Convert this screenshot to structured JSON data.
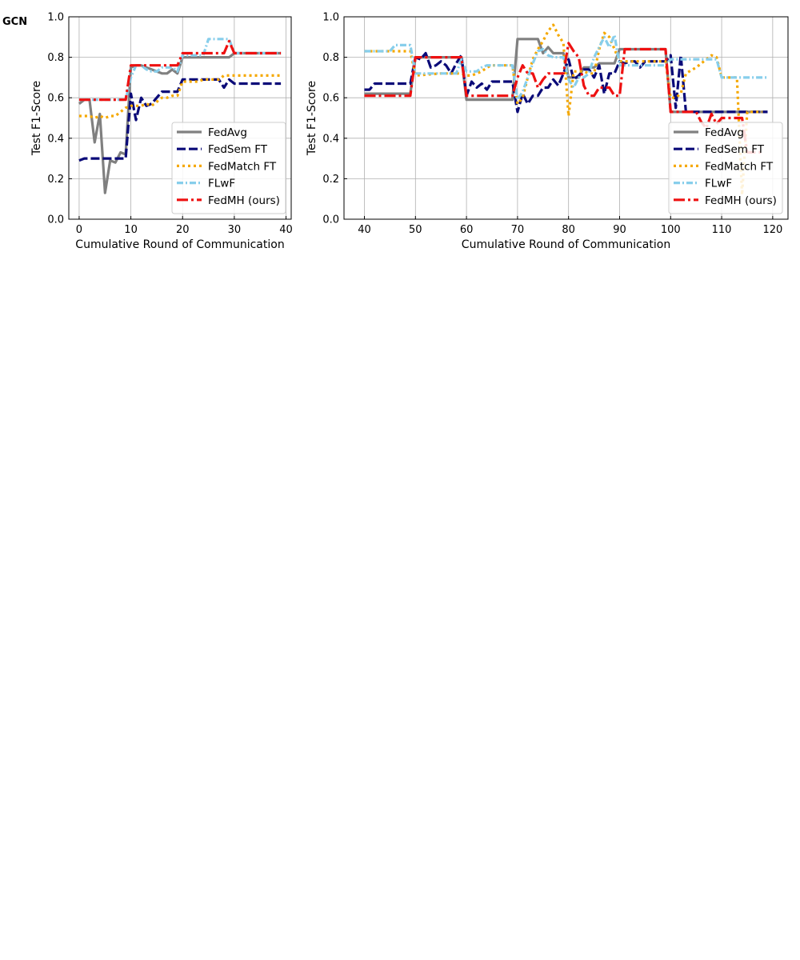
{
  "panel_label": "GCN",
  "chart_data": [
    {
      "type": "line",
      "xlabel": "Cumulative Round of Communication",
      "ylabel": "Test F1-Score",
      "xlim": [
        -2,
        41
      ],
      "ylim": [
        0,
        1
      ],
      "xticks": [
        0,
        10,
        20,
        30,
        40
      ],
      "yticks": [
        0.0,
        0.2,
        0.4,
        0.6,
        0.8,
        1.0
      ],
      "grid": true,
      "legend_position": "lower-right",
      "series": [
        {
          "name": "FedAvg",
          "color": "#808080",
          "dash": "solid",
          "x": [
            0,
            1,
            2,
            3,
            4,
            5,
            6,
            7,
            8,
            9,
            10,
            11,
            12,
            13,
            14,
            15,
            16,
            17,
            18,
            19,
            20,
            21,
            22,
            23,
            24,
            25,
            26,
            27,
            28,
            29,
            30,
            31,
            32,
            33,
            34,
            35,
            36,
            37,
            38,
            39
          ],
          "y": [
            0.57,
            0.59,
            0.59,
            0.38,
            0.52,
            0.13,
            0.29,
            0.28,
            0.33,
            0.32,
            0.75,
            0.76,
            0.76,
            0.75,
            0.74,
            0.73,
            0.72,
            0.72,
            0.74,
            0.72,
            0.8,
            0.8,
            0.8,
            0.8,
            0.8,
            0.8,
            0.8,
            0.8,
            0.8,
            0.8,
            0.82,
            0.82,
            0.82,
            0.82,
            0.82,
            0.82,
            0.82,
            0.82,
            0.82,
            0.82
          ]
        },
        {
          "name": "FedSem FT",
          "color": "#0a0a78",
          "dash": "dashed",
          "x": [
            0,
            1,
            2,
            3,
            4,
            5,
            6,
            7,
            8,
            9,
            10,
            11,
            12,
            13,
            14,
            15,
            16,
            17,
            18,
            19,
            20,
            21,
            22,
            23,
            24,
            25,
            26,
            27,
            28,
            29,
            30,
            31,
            32,
            33,
            34,
            35,
            36,
            37,
            38,
            39
          ],
          "y": [
            0.29,
            0.3,
            0.3,
            0.3,
            0.3,
            0.3,
            0.3,
            0.3,
            0.3,
            0.3,
            0.62,
            0.49,
            0.6,
            0.56,
            0.57,
            0.6,
            0.63,
            0.63,
            0.63,
            0.63,
            0.69,
            0.69,
            0.69,
            0.69,
            0.69,
            0.69,
            0.69,
            0.69,
            0.65,
            0.69,
            0.67,
            0.67,
            0.67,
            0.67,
            0.67,
            0.67,
            0.67,
            0.67,
            0.67,
            0.67
          ]
        },
        {
          "name": "FedMatch FT",
          "color": "#f5a800",
          "dash": "dotted",
          "x": [
            0,
            1,
            2,
            3,
            4,
            5,
            6,
            7,
            8,
            9,
            10,
            11,
            12,
            13,
            14,
            15,
            16,
            17,
            18,
            19,
            20,
            21,
            22,
            23,
            24,
            25,
            26,
            27,
            28,
            29,
            30,
            31,
            32,
            33,
            34,
            35,
            36,
            37,
            38,
            39
          ],
          "y": [
            0.51,
            0.51,
            0.51,
            0.5,
            0.51,
            0.5,
            0.51,
            0.51,
            0.53,
            0.55,
            0.56,
            0.56,
            0.56,
            0.57,
            0.56,
            0.58,
            0.6,
            0.6,
            0.61,
            0.61,
            0.68,
            0.68,
            0.68,
            0.68,
            0.69,
            0.69,
            0.69,
            0.69,
            0.71,
            0.71,
            0.71,
            0.71,
            0.71,
            0.71,
            0.71,
            0.71,
            0.71,
            0.71,
            0.71,
            0.71
          ]
        },
        {
          "name": "FLwF",
          "color": "#87ceeb",
          "dash": "dashdot",
          "x": [
            0,
            1,
            2,
            3,
            4,
            5,
            6,
            7,
            8,
            9,
            10,
            11,
            12,
            13,
            14,
            15,
            16,
            17,
            18,
            19,
            20,
            21,
            22,
            23,
            24,
            25,
            26,
            27,
            28,
            29,
            30,
            31,
            32,
            33,
            34,
            35,
            36,
            37,
            38,
            39
          ],
          "y": [
            0.59,
            0.59,
            0.59,
            0.59,
            0.59,
            0.59,
            0.59,
            0.59,
            0.59,
            0.59,
            0.7,
            0.76,
            0.76,
            0.74,
            0.73,
            0.73,
            0.75,
            0.75,
            0.75,
            0.73,
            0.81,
            0.81,
            0.81,
            0.81,
            0.81,
            0.89,
            0.89,
            0.89,
            0.89,
            0.89,
            0.82,
            0.82,
            0.82,
            0.82,
            0.82,
            0.82,
            0.82,
            0.82,
            0.82,
            0.82
          ]
        },
        {
          "name": "FedMH (ours)",
          "color": "#ee1111",
          "dash": "dashdot-long",
          "x": [
            0,
            1,
            2,
            3,
            4,
            5,
            6,
            7,
            8,
            9,
            10,
            11,
            12,
            13,
            14,
            15,
            16,
            17,
            18,
            19,
            20,
            21,
            22,
            23,
            24,
            25,
            26,
            27,
            28,
            29,
            30,
            31,
            32,
            33,
            34,
            35,
            36,
            37,
            38,
            39
          ],
          "y": [
            0.59,
            0.59,
            0.59,
            0.59,
            0.59,
            0.59,
            0.59,
            0.59,
            0.59,
            0.59,
            0.76,
            0.76,
            0.76,
            0.76,
            0.76,
            0.76,
            0.76,
            0.76,
            0.76,
            0.76,
            0.82,
            0.82,
            0.82,
            0.82,
            0.82,
            0.82,
            0.82,
            0.82,
            0.82,
            0.88,
            0.82,
            0.82,
            0.82,
            0.82,
            0.82,
            0.82,
            0.82,
            0.82,
            0.82,
            0.82
          ]
        }
      ]
    },
    {
      "type": "line",
      "xlabel": "Cumulative Round of Communication",
      "ylabel": "Test F1-Score",
      "xlim": [
        36,
        123
      ],
      "ylim": [
        0,
        1
      ],
      "xticks": [
        40,
        50,
        60,
        70,
        80,
        90,
        100,
        110,
        120
      ],
      "yticks": [
        0.0,
        0.2,
        0.4,
        0.6,
        0.8,
        1.0
      ],
      "grid": true,
      "legend_position": "lower-right",
      "series": [
        {
          "name": "FedAvg",
          "color": "#808080",
          "dash": "solid",
          "x": [
            40,
            49,
            50,
            55,
            58,
            59,
            60,
            65,
            69,
            70,
            71,
            72,
            73,
            74,
            75,
            76,
            77,
            78,
            79,
            80,
            81,
            82,
            83,
            84,
            85,
            86,
            87,
            88,
            89,
            90,
            95,
            99,
            100,
            105,
            110,
            115,
            119
          ],
          "y": [
            0.62,
            0.62,
            0.8,
            0.8,
            0.8,
            0.8,
            0.59,
            0.59,
            0.59,
            0.89,
            0.89,
            0.89,
            0.89,
            0.89,
            0.82,
            0.85,
            0.82,
            0.82,
            0.82,
            0.7,
            0.7,
            0.7,
            0.75,
            0.75,
            0.75,
            0.77,
            0.77,
            0.77,
            0.77,
            0.84,
            0.84,
            0.84,
            0.53,
            0.53,
            0.53,
            0.53,
            0.53
          ]
        },
        {
          "name": "FedSem FT",
          "color": "#0a0a78",
          "dash": "dashed",
          "x": [
            40,
            41,
            42,
            45,
            49,
            50,
            51,
            52,
            53,
            54,
            55,
            56,
            57,
            58,
            59,
            60,
            61,
            62,
            63,
            64,
            65,
            66,
            67,
            68,
            69,
            70,
            71,
            72,
            73,
            74,
            75,
            76,
            77,
            78,
            79,
            80,
            81,
            82,
            83,
            84,
            85,
            86,
            87,
            88,
            89,
            90,
            91,
            92,
            93,
            94,
            95,
            96,
            97,
            98,
            99,
            100,
            101,
            102,
            103,
            105,
            110,
            115,
            119
          ],
          "y": [
            0.64,
            0.64,
            0.67,
            0.67,
            0.67,
            0.8,
            0.79,
            0.82,
            0.75,
            0.76,
            0.78,
            0.76,
            0.72,
            0.77,
            0.81,
            0.61,
            0.68,
            0.65,
            0.67,
            0.64,
            0.68,
            0.68,
            0.68,
            0.68,
            0.68,
            0.53,
            0.62,
            0.57,
            0.61,
            0.61,
            0.65,
            0.65,
            0.69,
            0.66,
            0.72,
            0.79,
            0.69,
            0.71,
            0.74,
            0.74,
            0.7,
            0.76,
            0.62,
            0.72,
            0.72,
            0.78,
            0.77,
            0.78,
            0.78,
            0.75,
            0.78,
            0.78,
            0.78,
            0.78,
            0.78,
            0.81,
            0.55,
            0.81,
            0.53,
            0.53,
            0.53,
            0.53,
            0.53
          ]
        },
        {
          "name": "FedMatch FT",
          "color": "#f5a800",
          "dash": "dotted",
          "x": [
            40,
            45,
            49,
            50,
            55,
            59,
            60,
            61,
            62,
            63,
            64,
            65,
            66,
            67,
            68,
            69,
            70,
            71,
            72,
            73,
            74,
            75,
            76,
            77,
            78,
            79,
            80,
            81,
            82,
            83,
            84,
            85,
            86,
            87,
            88,
            89,
            90,
            95,
            99,
            100,
            101,
            102,
            103,
            105,
            108,
            109,
            110,
            113,
            114,
            115,
            116,
            117,
            118
          ],
          "y": [
            0.83,
            0.83,
            0.83,
            0.71,
            0.72,
            0.72,
            0.71,
            0.71,
            0.72,
            0.73,
            0.75,
            0.76,
            0.76,
            0.76,
            0.76,
            0.76,
            0.57,
            0.6,
            0.7,
            0.79,
            0.84,
            0.88,
            0.93,
            0.96,
            0.91,
            0.87,
            0.51,
            0.73,
            0.73,
            0.73,
            0.72,
            0.72,
            0.84,
            0.92,
            0.9,
            0.84,
            0.78,
            0.78,
            0.78,
            0.6,
            0.6,
            0.62,
            0.72,
            0.75,
            0.81,
            0.8,
            0.7,
            0.7,
            0.12,
            0.53,
            0.53,
            0.53,
            0.53
          ]
        },
        {
          "name": "FLwF",
          "color": "#87ceeb",
          "dash": "dashdot",
          "x": [
            40,
            45,
            46,
            49,
            50,
            55,
            58,
            59,
            60,
            61,
            62,
            63,
            64,
            65,
            66,
            67,
            68,
            69,
            70,
            71,
            72,
            73,
            74,
            75,
            76,
            77,
            78,
            79,
            80,
            81,
            82,
            83,
            84,
            85,
            86,
            87,
            88,
            89,
            90,
            95,
            99,
            100,
            101,
            102,
            105,
            108,
            109,
            110,
            115,
            119
          ],
          "y": [
            0.83,
            0.83,
            0.86,
            0.86,
            0.72,
            0.72,
            0.72,
            0.79,
            0.73,
            0.73,
            0.73,
            0.75,
            0.76,
            0.76,
            0.76,
            0.76,
            0.76,
            0.76,
            0.59,
            0.63,
            0.7,
            0.77,
            0.83,
            0.84,
            0.81,
            0.8,
            0.8,
            0.8,
            0.69,
            0.65,
            0.7,
            0.7,
            0.72,
            0.8,
            0.85,
            0.9,
            0.85,
            0.91,
            0.76,
            0.76,
            0.76,
            0.79,
            0.79,
            0.79,
            0.79,
            0.79,
            0.79,
            0.7,
            0.7,
            0.7
          ]
        },
        {
          "name": "FedMH (ours)",
          "color": "#ee1111",
          "dash": "dashdot-long",
          "x": [
            40,
            49,
            50,
            55,
            59,
            60,
            65,
            69,
            70,
            71,
            72,
            73,
            74,
            75,
            76,
            77,
            78,
            79,
            80,
            81,
            82,
            83,
            84,
            85,
            86,
            87,
            88,
            89,
            90,
            91,
            95,
            99,
            100,
            101,
            105,
            106,
            107,
            108,
            109,
            110,
            111,
            112,
            113,
            114,
            115,
            116,
            117,
            118
          ],
          "y": [
            0.61,
            0.61,
            0.8,
            0.8,
            0.8,
            0.61,
            0.61,
            0.61,
            0.7,
            0.76,
            0.72,
            0.72,
            0.65,
            0.69,
            0.72,
            0.72,
            0.72,
            0.72,
            0.87,
            0.83,
            0.8,
            0.66,
            0.61,
            0.61,
            0.65,
            0.65,
            0.65,
            0.61,
            0.61,
            0.84,
            0.84,
            0.84,
            0.53,
            0.53,
            0.53,
            0.48,
            0.45,
            0.52,
            0.47,
            0.5,
            0.5,
            0.5,
            0.5,
            0.5,
            0.33,
            0.33,
            0.33,
            0.33
          ]
        }
      ]
    }
  ]
}
